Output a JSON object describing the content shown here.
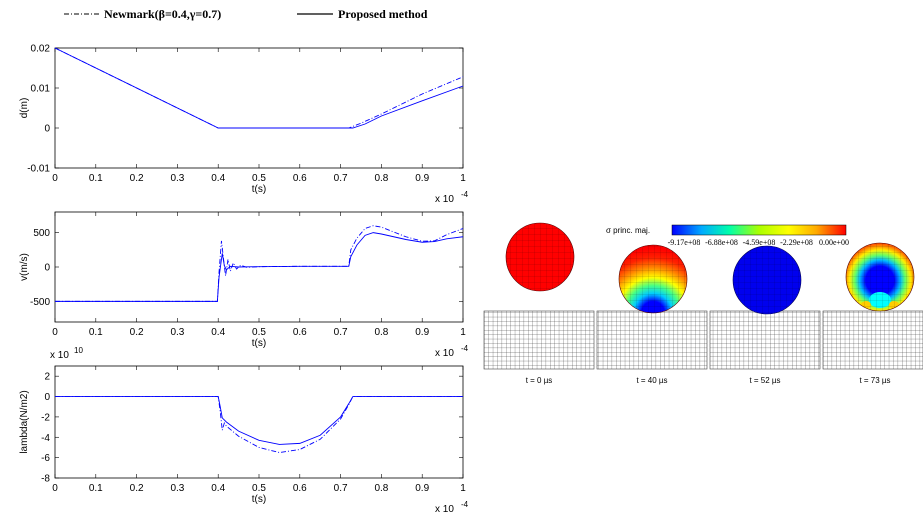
{
  "legend": {
    "newmark_label": "Newmark(β=0.4,γ=0.7)",
    "proposed_label": "Proposed method"
  },
  "colors": {
    "series": "#0000ff",
    "axes": "#000000"
  },
  "chart_data": [
    {
      "type": "line",
      "xlabel": "t(s)",
      "ylabel": "d(m)",
      "x_multiplier": "x 10",
      "x_multiplier_exp": "-4",
      "xlim": [
        0,
        1
      ],
      "ylim": [
        -0.01,
        0.02
      ],
      "xticks": [
        "0",
        "0.1",
        "0.2",
        "0.3",
        "0.4",
        "0.5",
        "0.6",
        "0.7",
        "0.8",
        "0.9",
        "1"
      ],
      "yticks": [
        "-0.01",
        "0",
        "0.01",
        "0.02"
      ],
      "ytick_values": [
        -0.01,
        0,
        0.01,
        0.02
      ],
      "series": [
        {
          "name": "Newmark(β=0.4,γ=0.7)",
          "style": "dashdot",
          "x": [
            0,
            0.4,
            0.72,
            0.75,
            0.8,
            0.9,
            1.0
          ],
          "y": [
            0.02,
            0.0,
            0.0,
            0.0012,
            0.0035,
            0.0085,
            0.0128
          ]
        },
        {
          "name": "Proposed method",
          "style": "solid",
          "x": [
            0,
            0.4,
            0.73,
            0.76,
            0.8,
            0.9,
            1.0
          ],
          "y": [
            0.02,
            0.0,
            0.0,
            0.001,
            0.003,
            0.0068,
            0.0105
          ]
        }
      ]
    },
    {
      "type": "line",
      "xlabel": "t(s)",
      "ylabel": "v(m/s)",
      "x_multiplier": "x 10",
      "x_multiplier_exp": "-4",
      "xlim": [
        0,
        1
      ],
      "ylim": [
        -800,
        800
      ],
      "xticks": [
        "0",
        "0.1",
        "0.2",
        "0.3",
        "0.4",
        "0.5",
        "0.6",
        "0.7",
        "0.8",
        "0.9",
        "1"
      ],
      "yticks": [
        "-500",
        "0",
        "500"
      ],
      "ytick_values": [
        -500,
        0,
        500
      ],
      "series": [
        {
          "name": "Newmark(β=0.4,γ=0.7)",
          "style": "dashdot",
          "x": [
            0,
            0.398,
            0.402,
            0.408,
            0.413,
            0.418,
            0.424,
            0.43,
            0.437,
            0.445,
            0.455,
            0.47,
            0.5,
            0.6,
            0.72,
            0.725,
            0.74,
            0.76,
            0.78,
            0.8,
            0.83,
            0.86,
            0.9,
            0.93,
            0.96,
            1.0
          ],
          "y": [
            -500,
            -500,
            -80,
            380,
            120,
            -130,
            110,
            -60,
            60,
            -30,
            25,
            -5,
            5,
            10,
            10,
            250,
            420,
            560,
            600,
            580,
            510,
            440,
            375,
            380,
            470,
            560
          ]
        },
        {
          "name": "Proposed method",
          "style": "solid",
          "x": [
            0,
            0.398,
            0.402,
            0.41,
            0.415,
            0.42,
            0.43,
            0.45,
            0.5,
            0.6,
            0.72,
            0.725,
            0.74,
            0.76,
            0.78,
            0.8,
            0.83,
            0.86,
            0.9,
            0.93,
            0.96,
            1.0
          ],
          "y": [
            -500,
            -500,
            -150,
            200,
            20,
            -40,
            10,
            0,
            5,
            10,
            10,
            150,
            320,
            460,
            500,
            480,
            440,
            400,
            360,
            370,
            410,
            440
          ]
        }
      ]
    },
    {
      "type": "line",
      "xlabel": "t(s)",
      "ylabel": "lambda(N/m2)",
      "x_multiplier": "x 10",
      "x_multiplier_exp": "-4",
      "y_multiplier": "x 10",
      "y_multiplier_exp": "10",
      "xlim": [
        0,
        1
      ],
      "ylim": [
        -8,
        3
      ],
      "xticks": [
        "0",
        "0.1",
        "0.2",
        "0.3",
        "0.4",
        "0.5",
        "0.6",
        "0.7",
        "0.8",
        "0.9",
        "1"
      ],
      "yticks": [
        "-8",
        "-6",
        "-4",
        "-2",
        "0",
        "2"
      ],
      "ytick_values": [
        -8,
        -6,
        -4,
        -2,
        0,
        2
      ],
      "series": [
        {
          "name": "Newmark(β=0.4,γ=0.7)",
          "style": "dashdot",
          "x": [
            0,
            0.4,
            0.405,
            0.41,
            0.415,
            0.42,
            0.45,
            0.5,
            0.55,
            0.6,
            0.65,
            0.7,
            0.72,
            0.73,
            1.0
          ],
          "y": [
            0,
            0,
            -1.5,
            -3.3,
            -2.6,
            -2.9,
            -3.9,
            -5.0,
            -5.5,
            -5.2,
            -4.2,
            -2.2,
            -0.8,
            0,
            0
          ]
        },
        {
          "name": "Proposed method",
          "style": "solid",
          "x": [
            0,
            0.4,
            0.405,
            0.41,
            0.42,
            0.45,
            0.5,
            0.55,
            0.6,
            0.65,
            0.7,
            0.72,
            0.73,
            1.0
          ],
          "y": [
            0,
            0,
            -1.0,
            -2.1,
            -2.5,
            -3.4,
            -4.3,
            -4.7,
            -4.6,
            -3.8,
            -2.0,
            -0.7,
            0,
            0
          ]
        }
      ]
    }
  ],
  "stress_figure": {
    "colorbar_label": "σ princ. maj.",
    "colorbar_ticks": [
      "-9.17e+08",
      "-6.88e+08",
      "-4.59e+08",
      "-2.29e+08",
      "0.00e+00"
    ],
    "colorbar_colors": [
      "#0000ff",
      "#00aaff",
      "#00ffaa",
      "#aaff00",
      "#ffff00",
      "#ffaa00",
      "#ff0000"
    ],
    "panels": [
      {
        "time_label": "t = 0 µs",
        "state": "uniform-zero"
      },
      {
        "time_label": "t = 40 µs",
        "state": "contact"
      },
      {
        "time_label": "t = 52 µs",
        "state": "full-compression"
      },
      {
        "time_label": "t = 73 µs",
        "state": "rebound"
      }
    ]
  }
}
